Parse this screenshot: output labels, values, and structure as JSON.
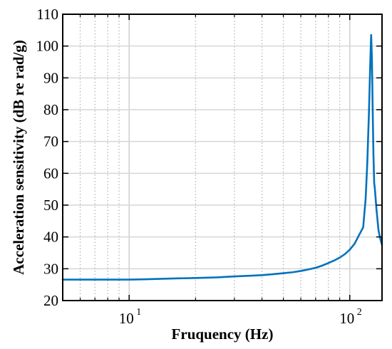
{
  "chart_data": {
    "type": "line",
    "xlabel": "Fruquency (Hz)",
    "ylabel": "Acceleration sensitivity (dB re rad/g)",
    "x_scale": "log",
    "xlim": [
      5,
      140
    ],
    "ylim": [
      20,
      110
    ],
    "x_major_ticks": [
      {
        "value": 10,
        "base": "10",
        "exp": "1"
      },
      {
        "value": 100,
        "base": "10",
        "exp": "2"
      }
    ],
    "y_ticks": [
      "20",
      "30",
      "40",
      "50",
      "60",
      "70",
      "80",
      "90",
      "100",
      "110"
    ],
    "grid": true,
    "series": [
      {
        "color": "#0072BD",
        "x": [
          5,
          6,
          7,
          8,
          9,
          10,
          12,
          15,
          20,
          25,
          30,
          35,
          40,
          45,
          50,
          55,
          60,
          65,
          70,
          75,
          80,
          85,
          90,
          95,
          100,
          105,
          110,
          115,
          118,
          120,
          122,
          124,
          125,
          126,
          127,
          128,
          129,
          130,
          132,
          135,
          138,
          140
        ],
        "y": [
          26.6,
          26.6,
          26.6,
          26.6,
          26.6,
          26.6,
          26.7,
          26.9,
          27.1,
          27.3,
          27.6,
          27.8,
          28.0,
          28.3,
          28.6,
          28.9,
          29.3,
          29.8,
          30.3,
          31.0,
          31.8,
          32.6,
          33.5,
          34.6,
          36.0,
          37.8,
          40.5,
          43.0,
          52.0,
          63.0,
          78.0,
          96.0,
          103.5,
          96.0,
          80.0,
          66.0,
          57.0,
          55.0,
          49.0,
          42.0,
          39.0,
          37.5
        ]
      }
    ]
  }
}
